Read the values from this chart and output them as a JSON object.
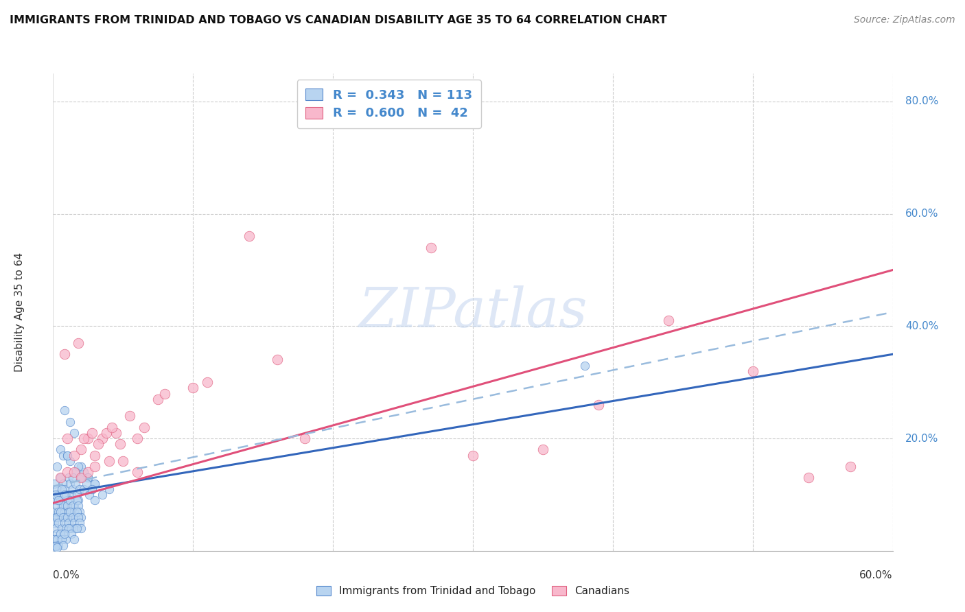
{
  "title": "IMMIGRANTS FROM TRINIDAD AND TOBAGO VS CANADIAN DISABILITY AGE 35 TO 64 CORRELATION CHART",
  "source": "Source: ZipAtlas.com",
  "ylabel": "Disability Age 35 to 64",
  "legend_label1": "R =  0.343   N = 113",
  "legend_label2": "R =  0.600   N =  42",
  "legend_label_bottom1": "Immigrants from Trinidad and Tobago",
  "legend_label_bottom2": "Canadians",
  "blue_fill_color": "#b8d4f0",
  "blue_edge_color": "#5588cc",
  "pink_fill_color": "#f8b8cc",
  "pink_edge_color": "#e06080",
  "blue_line_color": "#3366bb",
  "pink_line_color": "#e0507a",
  "blue_dashed_color": "#99bbdd",
  "grid_color": "#cccccc",
  "right_tick_color": "#4488cc",
  "watermark_color": "#c8d8f0",
  "xlim": [
    0.0,
    0.6
  ],
  "ylim": [
    0.0,
    0.85
  ],
  "ytick_positions": [
    0.2,
    0.4,
    0.6,
    0.8
  ],
  "ytick_labels": [
    "20.0%",
    "40.0%",
    "60.0%",
    "80.0%"
  ],
  "blue_line": [
    [
      0.0,
      0.1
    ],
    [
      0.6,
      0.35
    ]
  ],
  "pink_line": [
    [
      0.0,
      0.085
    ],
    [
      0.6,
      0.5
    ]
  ],
  "blue_dashed_line": [
    [
      0.0,
      0.115
    ],
    [
      0.6,
      0.425
    ]
  ],
  "blue_dots": [
    [
      0.001,
      0.12
    ],
    [
      0.002,
      0.09
    ],
    [
      0.003,
      0.11
    ],
    [
      0.004,
      0.1
    ],
    [
      0.005,
      0.13
    ],
    [
      0.006,
      0.08
    ],
    [
      0.007,
      0.12
    ],
    [
      0.008,
      0.11
    ],
    [
      0.009,
      0.1
    ],
    [
      0.01,
      0.09
    ],
    [
      0.011,
      0.13
    ],
    [
      0.012,
      0.12
    ],
    [
      0.013,
      0.1
    ],
    [
      0.014,
      0.11
    ],
    [
      0.015,
      0.08
    ],
    [
      0.016,
      0.12
    ],
    [
      0.017,
      0.1
    ],
    [
      0.018,
      0.09
    ],
    [
      0.019,
      0.11
    ],
    [
      0.02,
      0.13
    ],
    [
      0.001,
      0.07
    ],
    [
      0.002,
      0.06
    ],
    [
      0.003,
      0.08
    ],
    [
      0.004,
      0.07
    ],
    [
      0.005,
      0.09
    ],
    [
      0.006,
      0.06
    ],
    [
      0.007,
      0.08
    ],
    [
      0.008,
      0.07
    ],
    [
      0.009,
      0.06
    ],
    [
      0.01,
      0.08
    ],
    [
      0.011,
      0.07
    ],
    [
      0.012,
      0.09
    ],
    [
      0.013,
      0.06
    ],
    [
      0.014,
      0.08
    ],
    [
      0.015,
      0.07
    ],
    [
      0.016,
      0.06
    ],
    [
      0.017,
      0.09
    ],
    [
      0.018,
      0.08
    ],
    [
      0.019,
      0.07
    ],
    [
      0.02,
      0.06
    ],
    [
      0.001,
      0.05
    ],
    [
      0.002,
      0.04
    ],
    [
      0.003,
      0.06
    ],
    [
      0.004,
      0.05
    ],
    [
      0.005,
      0.07
    ],
    [
      0.006,
      0.04
    ],
    [
      0.007,
      0.06
    ],
    [
      0.008,
      0.05
    ],
    [
      0.009,
      0.04
    ],
    [
      0.01,
      0.06
    ],
    [
      0.011,
      0.05
    ],
    [
      0.012,
      0.07
    ],
    [
      0.013,
      0.04
    ],
    [
      0.014,
      0.06
    ],
    [
      0.015,
      0.05
    ],
    [
      0.016,
      0.04
    ],
    [
      0.017,
      0.07
    ],
    [
      0.018,
      0.06
    ],
    [
      0.019,
      0.05
    ],
    [
      0.02,
      0.04
    ],
    [
      0.022,
      0.14
    ],
    [
      0.025,
      0.13
    ],
    [
      0.028,
      0.11
    ],
    [
      0.03,
      0.12
    ],
    [
      0.035,
      0.1
    ],
    [
      0.04,
      0.11
    ],
    [
      0.008,
      0.25
    ],
    [
      0.012,
      0.23
    ],
    [
      0.005,
      0.18
    ],
    [
      0.015,
      0.21
    ],
    [
      0.003,
      0.15
    ],
    [
      0.007,
      0.17
    ],
    [
      0.01,
      0.17
    ],
    [
      0.02,
      0.15
    ],
    [
      0.025,
      0.13
    ],
    [
      0.03,
      0.12
    ],
    [
      0.002,
      0.1
    ],
    [
      0.004,
      0.09
    ],
    [
      0.006,
      0.11
    ],
    [
      0.008,
      0.1
    ],
    [
      0.003,
      0.03
    ],
    [
      0.005,
      0.02
    ],
    [
      0.007,
      0.03
    ],
    [
      0.009,
      0.02
    ],
    [
      0.011,
      0.04
    ],
    [
      0.013,
      0.03
    ],
    [
      0.015,
      0.02
    ],
    [
      0.017,
      0.04
    ],
    [
      0.001,
      0.02
    ],
    [
      0.002,
      0.01
    ],
    [
      0.003,
      0.02
    ],
    [
      0.004,
      0.01
    ],
    [
      0.005,
      0.03
    ],
    [
      0.006,
      0.02
    ],
    [
      0.007,
      0.01
    ],
    [
      0.008,
      0.03
    ],
    [
      0.38,
      0.33
    ],
    [
      0.02,
      0.13
    ],
    [
      0.022,
      0.11
    ],
    [
      0.024,
      0.12
    ],
    [
      0.026,
      0.1
    ],
    [
      0.028,
      0.11
    ],
    [
      0.018,
      0.15
    ],
    [
      0.016,
      0.14
    ],
    [
      0.014,
      0.13
    ],
    [
      0.012,
      0.16
    ],
    [
      0.01,
      0.17
    ],
    [
      0.03,
      0.09
    ],
    [
      0.001,
      0.005
    ],
    [
      0.002,
      0.008
    ],
    [
      0.003,
      0.006
    ]
  ],
  "pink_dots": [
    [
      0.02,
      0.18
    ],
    [
      0.025,
      0.2
    ],
    [
      0.03,
      0.17
    ],
    [
      0.035,
      0.2
    ],
    [
      0.045,
      0.21
    ],
    [
      0.055,
      0.24
    ],
    [
      0.065,
      0.22
    ],
    [
      0.075,
      0.27
    ],
    [
      0.08,
      0.28
    ],
    [
      0.01,
      0.2
    ],
    [
      0.015,
      0.17
    ],
    [
      0.008,
      0.35
    ],
    [
      0.018,
      0.37
    ],
    [
      0.022,
      0.2
    ],
    [
      0.028,
      0.21
    ],
    [
      0.032,
      0.19
    ],
    [
      0.038,
      0.21
    ],
    [
      0.042,
      0.22
    ],
    [
      0.048,
      0.19
    ],
    [
      0.005,
      0.13
    ],
    [
      0.01,
      0.14
    ],
    [
      0.015,
      0.14
    ],
    [
      0.02,
      0.13
    ],
    [
      0.025,
      0.14
    ],
    [
      0.03,
      0.15
    ],
    [
      0.04,
      0.16
    ],
    [
      0.05,
      0.16
    ],
    [
      0.06,
      0.14
    ],
    [
      0.14,
      0.56
    ],
    [
      0.27,
      0.54
    ],
    [
      0.44,
      0.41
    ],
    [
      0.18,
      0.2
    ],
    [
      0.1,
      0.29
    ],
    [
      0.11,
      0.3
    ],
    [
      0.16,
      0.34
    ],
    [
      0.06,
      0.2
    ],
    [
      0.39,
      0.26
    ],
    [
      0.57,
      0.15
    ],
    [
      0.5,
      0.32
    ],
    [
      0.54,
      0.13
    ],
    [
      0.35,
      0.18
    ],
    [
      0.3,
      0.17
    ]
  ]
}
